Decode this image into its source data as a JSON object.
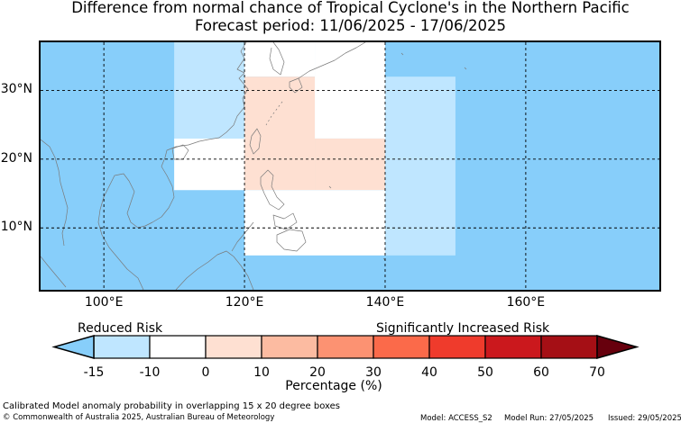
{
  "title": {
    "line1": "Difference from normal chance of Tropical Cyclone's in the Northern Pacific",
    "line2": "Forecast period: 11/06/2025 - 17/06/2025"
  },
  "map": {
    "lon_range": [
      91,
      179
    ],
    "lat_range": [
      1,
      37
    ],
    "lat_ticks": [
      {
        "value": 10,
        "label": "10°N"
      },
      {
        "value": 20,
        "label": "20°N"
      },
      {
        "value": 30,
        "label": "30°N"
      }
    ],
    "lon_ticks": [
      {
        "value": 100,
        "label": "100°E"
      },
      {
        "value": 120,
        "label": "120°E"
      },
      {
        "value": 140,
        "label": "140°E"
      },
      {
        "value": 160,
        "label": "160°E"
      }
    ],
    "background_color": "#87cefa",
    "cells": [
      {
        "lon": [
          110,
          120
        ],
        "lat": [
          23,
          37
        ],
        "color": "#bfe6ff"
      },
      {
        "lon": [
          110,
          120
        ],
        "lat": [
          15.5,
          23
        ],
        "color": "#ffffff"
      },
      {
        "lon": [
          120,
          130
        ],
        "lat": [
          32,
          37
        ],
        "color": "#ffffff"
      },
      {
        "lon": [
          130,
          140
        ],
        "lat": [
          23,
          37
        ],
        "color": "#ffffff"
      },
      {
        "lon": [
          120,
          130
        ],
        "lat": [
          15.5,
          32
        ],
        "color": "#fee0d2"
      },
      {
        "lon": [
          130,
          140
        ],
        "lat": [
          15.5,
          23
        ],
        "color": "#fee0d2"
      },
      {
        "lon": [
          120,
          140
        ],
        "lat": [
          6,
          15.5
        ],
        "color": "#ffffff"
      },
      {
        "lon": [
          140,
          150
        ],
        "lat": [
          6,
          32
        ],
        "color": "#bfe6ff"
      }
    ]
  },
  "colorbar": {
    "left_caption": "Reduced Risk",
    "right_caption": "Significantly Increased Risk",
    "unit_label": "Percentage (%)",
    "ticks": [
      "-15",
      "-10",
      "0",
      "10",
      "20",
      "30",
      "40",
      "50",
      "60",
      "70"
    ],
    "under_color": "#87cefa",
    "over_color": "#67000d",
    "colors": [
      "#bfe6ff",
      "#ffffff",
      "#fee0d2",
      "#fcbba1",
      "#fc9272",
      "#fb6a4a",
      "#ef3b2c",
      "#cb181d",
      "#a50f15"
    ]
  },
  "footer": {
    "note": "Calibrated Model anomaly probability in overlapping 15 x 20 degree boxes",
    "copyright": "© Commonwealth of Australia 2025, Australian Bureau of Meteorology",
    "model": "Model: ACCESS_S2",
    "model_run": "Model Run: 27/05/2025",
    "issued": "Issued: 29/05/2025"
  }
}
